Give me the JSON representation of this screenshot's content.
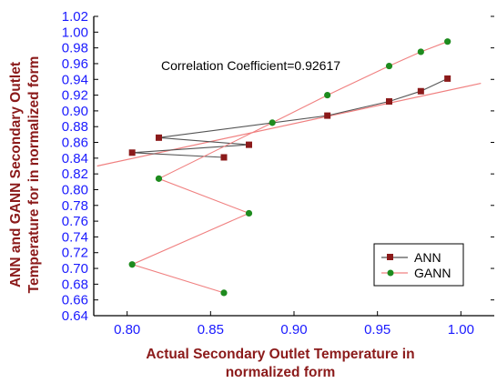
{
  "chart_data": {
    "type": "scatter",
    "title": "",
    "xlabel_lines": [
      "Actual Secondary Outlet Temperature in",
      "normalized form"
    ],
    "ylabel_lines": [
      "ANN and GANN Secondary Outlet",
      "Temperature for in normalized form"
    ],
    "xlim": [
      0.78,
      1.02
    ],
    "ylim": [
      0.64,
      1.02
    ],
    "x_ticks": [
      "0.80",
      "0.85",
      "0.90",
      "0.95",
      "1.00"
    ],
    "y_ticks": [
      "0.64",
      "0.66",
      "0.68",
      "0.70",
      "0.72",
      "0.74",
      "0.76",
      "0.78",
      "0.80",
      "0.82",
      "0.84",
      "0.86",
      "0.88",
      "0.90",
      "0.92",
      "0.94",
      "0.96",
      "0.98",
      "1.00",
      "1.02"
    ],
    "annotation": "Correlation Coefficient=0.92617",
    "legend_position": "lower-right",
    "grid": false,
    "series": [
      {
        "name": "ANN",
        "marker": "square",
        "line_color": "#555555",
        "marker_color": "#8b1a1a",
        "points": [
          [
            0.992,
            0.941
          ],
          [
            0.976,
            0.925
          ],
          [
            0.957,
            0.912
          ],
          [
            0.92,
            0.894
          ],
          [
            0.819,
            0.866
          ],
          [
            0.873,
            0.857
          ],
          [
            0.803,
            0.847
          ],
          [
            0.858,
            0.841
          ]
        ]
      },
      {
        "name": "GANN",
        "marker": "circle",
        "line_color": "#f08080",
        "marker_color": "#1e8b1e",
        "points": [
          [
            0.992,
            0.988
          ],
          [
            0.976,
            0.975
          ],
          [
            0.957,
            0.957
          ],
          [
            0.92,
            0.92
          ],
          [
            0.887,
            0.885
          ],
          [
            0.819,
            0.814
          ],
          [
            0.873,
            0.77
          ],
          [
            0.803,
            0.705
          ],
          [
            0.858,
            0.669
          ]
        ]
      }
    ],
    "fit_line": {
      "color": "#f08080",
      "x": [
        0.782,
        1.012
      ],
      "y": [
        0.83,
        0.935
      ]
    },
    "colors": {
      "tick_label": "#1a1aff",
      "axis_title": "#8b1a1a",
      "axis_line": "#000000"
    }
  }
}
